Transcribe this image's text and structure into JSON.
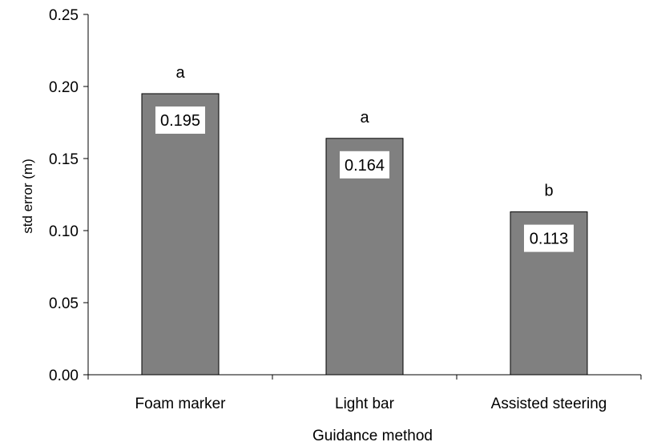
{
  "chart_data": {
    "type": "bar",
    "title": "",
    "xlabel": "Guidance method",
    "ylabel": "std error (m)",
    "ylim": [
      0,
      0.25
    ],
    "yticks": [
      "0.00",
      "0.05",
      "0.10",
      "0.15",
      "0.20",
      "0.25"
    ],
    "grid": false,
    "categories": [
      "Foam marker",
      "Light bar",
      "Assisted steering"
    ],
    "values": [
      0.195,
      0.164,
      0.113
    ],
    "data_labels": [
      "0.195",
      "0.164",
      "0.113"
    ],
    "significance_letters": [
      "a",
      "a",
      "b"
    ],
    "bar_color": "#808080",
    "bar_edge_color": "#000000"
  }
}
